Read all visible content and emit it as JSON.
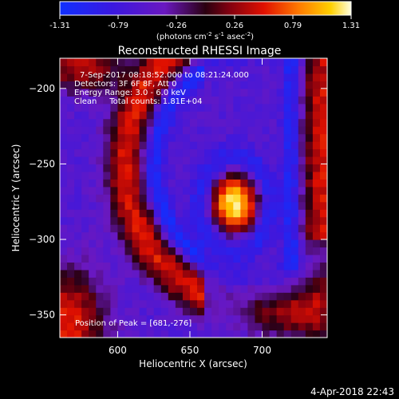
{
  "chart_data": {
    "type": "heatmap",
    "title": "Reconstructed RHESSI Image",
    "xlabel": "Heliocentric X (arcsec)",
    "ylabel": "Heliocentric Y (arcsec)",
    "xlim": [
      560,
      745
    ],
    "ylim": [
      -365,
      -180
    ],
    "x_ticks": [
      600,
      650,
      700
    ],
    "y_ticks": [
      -200,
      -250,
      -300,
      -350
    ],
    "colorbar": {
      "min": -1.31,
      "max": 1.31,
      "tick_labels": [
        "-1.31",
        "-0.79",
        "-0.26",
        "0.26",
        "0.79",
        "1.31"
      ],
      "unit_label": "(photons cm",
      "unit_sup1": "-2",
      "unit_mid1": " s",
      "unit_sup2": "-1",
      "unit_mid2": " asec",
      "unit_sup3": "-2",
      "unit_end": ")",
      "colormap": "blue-purple-red-yellow-white"
    },
    "annotations": [
      "7-Sep-2017 08:18:52.000 to 08:21:24.000",
      "Detectors: 3F 6F 8F, Att 0",
      "Energy Range: 3.0 - 6.0 keV",
      "Clean     Total counts: 1.81E+04"
    ],
    "peak_label": "Position of Peak = [681,-276]",
    "peak": {
      "x": 681,
      "y": -276,
      "value": 1.31
    },
    "timestamp": "4-Apr-2018 22:43"
  }
}
